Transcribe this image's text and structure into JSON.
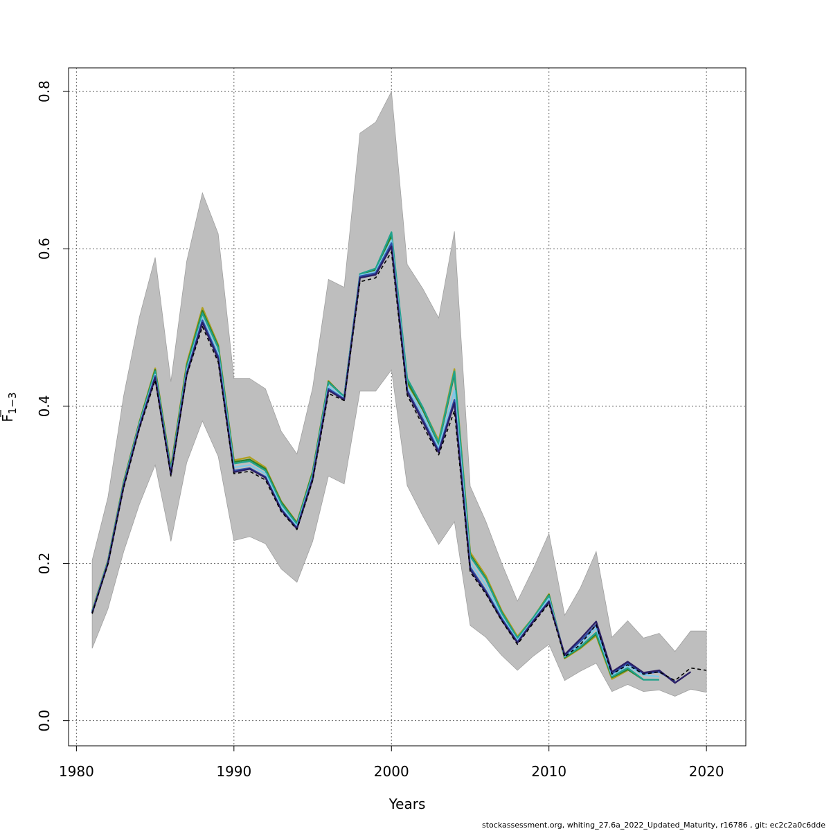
{
  "chart_data": {
    "type": "line",
    "title": "",
    "xlabel": "Years",
    "ylabel_main": "F",
    "ylabel_sub": "1−3",
    "xlim": [
      1979.5,
      2022.5
    ],
    "ylim": [
      -0.032,
      0.83
    ],
    "xticks": [
      1980,
      1990,
      2000,
      2010,
      2020
    ],
    "xtick_labels": [
      "1980",
      "1990",
      "2000",
      "2010",
      "2020"
    ],
    "yticks": [
      0.0,
      0.2,
      0.4,
      0.6,
      0.8
    ],
    "ytick_labels": [
      "0.0",
      "0.2",
      "0.4",
      "0.6",
      "0.8"
    ],
    "grid": true,
    "band": {
      "color": "#bebebe",
      "x": [
        1981,
        1982,
        1983,
        1984,
        1985,
        1986,
        1987,
        1988,
        1989,
        1990,
        1991,
        1992,
        1993,
        1994,
        1995,
        1996,
        1997,
        1998,
        1999,
        2000,
        2001,
        2002,
        2003,
        2004,
        2005,
        2006,
        2007,
        2008,
        2009,
        2010,
        2011,
        2012,
        2013,
        2014,
        2015,
        2016,
        2017,
        2018,
        2019,
        2020
      ],
      "lower": [
        0.092,
        0.142,
        0.215,
        0.275,
        0.325,
        0.228,
        0.328,
        0.381,
        0.336,
        0.229,
        0.234,
        0.225,
        0.193,
        0.176,
        0.228,
        0.311,
        0.301,
        0.419,
        0.419,
        0.446,
        0.299,
        0.26,
        0.224,
        0.253,
        0.121,
        0.106,
        0.083,
        0.064,
        0.082,
        0.097,
        0.051,
        0.063,
        0.073,
        0.037,
        0.046,
        0.037,
        0.039,
        0.031,
        0.04,
        0.036
      ],
      "upper": [
        0.204,
        0.284,
        0.413,
        0.513,
        0.589,
        0.431,
        0.584,
        0.671,
        0.619,
        0.435,
        0.435,
        0.422,
        0.368,
        0.339,
        0.423,
        0.561,
        0.551,
        0.747,
        0.761,
        0.8,
        0.58,
        0.549,
        0.512,
        0.622,
        0.298,
        0.253,
        0.2,
        0.152,
        0.193,
        0.238,
        0.134,
        0.169,
        0.215,
        0.106,
        0.127,
        0.105,
        0.111,
        0.088,
        0.114,
        0.114
      ]
    },
    "series": [
      {
        "color": "#000000",
        "dashed": true,
        "x": [
          1981,
          1982,
          1983,
          1984,
          1985,
          1986,
          1987,
          1988,
          1989,
          1990,
          1991,
          1992,
          1993,
          1994,
          1995,
          1996,
          1997,
          1998,
          1999,
          2000,
          2001,
          2002,
          2003,
          2004,
          2005,
          2006,
          2007,
          2008,
          2009,
          2010,
          2011,
          2012,
          2013,
          2014,
          2015,
          2016,
          2017,
          2018,
          2019,
          2020
        ],
        "values": [
          0.136,
          0.199,
          0.296,
          0.371,
          0.433,
          0.311,
          0.439,
          0.501,
          0.456,
          0.314,
          0.317,
          0.306,
          0.266,
          0.243,
          0.305,
          0.416,
          0.407,
          0.558,
          0.563,
          0.596,
          0.414,
          0.375,
          0.338,
          0.394,
          0.189,
          0.161,
          0.127,
          0.097,
          0.124,
          0.149,
          0.081,
          0.097,
          0.122,
          0.059,
          0.071,
          0.059,
          0.062,
          0.051,
          0.067,
          0.064
        ]
      },
      {
        "color": "#2b1f66",
        "dashed": false,
        "x": [
          1981,
          1982,
          1983,
          1984,
          1985,
          1986,
          1987,
          1988,
          1989,
          1990,
          1991,
          1992,
          1993,
          1994,
          1995,
          1996,
          1997,
          1998,
          1999,
          2000,
          2001,
          2002,
          2003,
          2004,
          2005,
          2006,
          2007,
          2008,
          2009,
          2010,
          2011,
          2012,
          2013,
          2014,
          2015,
          2016,
          2017,
          2018,
          2019
        ],
        "values": [
          0.137,
          0.2,
          0.298,
          0.373,
          0.436,
          0.313,
          0.44,
          0.506,
          0.46,
          0.316,
          0.32,
          0.309,
          0.268,
          0.244,
          0.307,
          0.42,
          0.408,
          0.563,
          0.567,
          0.603,
          0.418,
          0.38,
          0.341,
          0.404,
          0.192,
          0.163,
          0.128,
          0.099,
          0.126,
          0.151,
          0.084,
          0.104,
          0.126,
          0.062,
          0.075,
          0.061,
          0.064,
          0.048,
          0.062
        ]
      },
      {
        "color": "#2d4fa8",
        "dashed": false,
        "x": [
          1981,
          1982,
          1983,
          1984,
          1985,
          1986,
          1987,
          1988,
          1989,
          1990,
          1991,
          1992,
          1993,
          1994,
          1995,
          1996,
          1997,
          1998,
          1999,
          2000,
          2001,
          2002,
          2003,
          2004,
          2005,
          2006,
          2007,
          2008,
          2009,
          2010,
          2011,
          2012,
          2013,
          2014,
          2015,
          2016,
          2017,
          2018
        ],
        "values": [
          0.137,
          0.201,
          0.299,
          0.374,
          0.438,
          0.314,
          0.442,
          0.509,
          0.463,
          0.318,
          0.321,
          0.31,
          0.269,
          0.245,
          0.309,
          0.422,
          0.409,
          0.565,
          0.569,
          0.607,
          0.42,
          0.383,
          0.343,
          0.408,
          0.195,
          0.165,
          0.13,
          0.1,
          0.127,
          0.152,
          0.083,
          0.101,
          0.122,
          0.06,
          0.073,
          0.06,
          0.062,
          0.05
        ]
      },
      {
        "color": "#7ec8e8",
        "dashed": false,
        "x": [
          1981,
          1982,
          1983,
          1984,
          1985,
          1986,
          1987,
          1988,
          1989,
          1990,
          1991,
          1992,
          1993,
          1994,
          1995,
          1996,
          1997,
          1998,
          1999,
          2000,
          2001,
          2002,
          2003,
          2004,
          2005,
          2006,
          2007,
          2008,
          2009,
          2010,
          2011,
          2012,
          2013,
          2014,
          2015,
          2016,
          2017
        ],
        "values": [
          0.138,
          0.202,
          0.3,
          0.376,
          0.44,
          0.316,
          0.445,
          0.512,
          0.467,
          0.322,
          0.325,
          0.314,
          0.272,
          0.247,
          0.311,
          0.425,
          0.41,
          0.566,
          0.571,
          0.611,
          0.425,
          0.389,
          0.347,
          0.42,
          0.201,
          0.172,
          0.132,
          0.102,
          0.128,
          0.155,
          0.082,
          0.097,
          0.118,
          0.058,
          0.07,
          0.058,
          0.056
        ]
      },
      {
        "color": "#20a28c",
        "dashed": false,
        "x": [
          1981,
          1982,
          1983,
          1984,
          1985,
          1986,
          1987,
          1988,
          1989,
          1990,
          1991,
          1992,
          1993,
          1994,
          1995,
          1996,
          1997,
          1998,
          1999,
          2000,
          2001,
          2002,
          2003,
          2004,
          2005,
          2006,
          2007,
          2008,
          2009,
          2010,
          2011,
          2012,
          2013,
          2014,
          2015,
          2016,
          2017
        ],
        "values": [
          0.139,
          0.203,
          0.302,
          0.378,
          0.444,
          0.318,
          0.449,
          0.518,
          0.474,
          0.327,
          0.33,
          0.318,
          0.276,
          0.25,
          0.314,
          0.43,
          0.412,
          0.568,
          0.575,
          0.621,
          0.435,
          0.398,
          0.353,
          0.444,
          0.209,
          0.18,
          0.137,
          0.105,
          0.131,
          0.159,
          0.081,
          0.094,
          0.112,
          0.056,
          0.067,
          0.052,
          0.052
        ]
      },
      {
        "color": "#2f7f2a",
        "dashed": false,
        "x": [
          1981,
          1982,
          1983,
          1984,
          1985,
          1986,
          1987,
          1988,
          1989,
          1990,
          1991,
          1992,
          1993,
          1994,
          1995,
          1996,
          1997,
          1998,
          1999,
          2000,
          2001,
          2002,
          2003,
          2004,
          2005,
          2006,
          2007,
          2008,
          2009,
          2010,
          2011,
          2012,
          2013,
          2014,
          2015,
          2016
        ],
        "values": [
          0.139,
          0.203,
          0.303,
          0.379,
          0.446,
          0.32,
          0.451,
          0.521,
          0.476,
          0.329,
          0.332,
          0.32,
          0.278,
          0.251,
          0.316,
          0.431,
          0.412,
          0.566,
          0.573,
          0.617,
          0.431,
          0.395,
          0.352,
          0.441,
          0.211,
          0.181,
          0.138,
          0.105,
          0.13,
          0.16,
          0.08,
          0.093,
          0.11,
          0.055,
          0.065,
          0.052
        ]
      },
      {
        "color": "#b0a020",
        "dashed": false,
        "x": [
          1981,
          1982,
          1983,
          1984,
          1985,
          1986,
          1987,
          1988,
          1989,
          1990,
          1991,
          1992,
          1993,
          1994,
          1995,
          1996,
          1997,
          1998,
          1999,
          2000,
          2001,
          2002,
          2003,
          2004,
          2005,
          2006,
          2007,
          2008,
          2009,
          2010,
          2011,
          2012,
          2013,
          2014,
          2015
        ],
        "values": [
          0.14,
          0.204,
          0.304,
          0.38,
          0.448,
          0.322,
          0.454,
          0.525,
          0.478,
          0.331,
          0.335,
          0.322,
          0.279,
          0.252,
          0.317,
          0.432,
          0.411,
          0.563,
          0.569,
          0.614,
          0.428,
          0.397,
          0.356,
          0.447,
          0.214,
          0.184,
          0.14,
          0.107,
          0.131,
          0.161,
          0.079,
          0.092,
          0.108,
          0.053,
          0.064
        ]
      }
    ]
  },
  "footer": "stockassessment.org, whiting_27.6a_2022_Updated_Maturity, r16786 , git: ec2c2a0c6dde"
}
